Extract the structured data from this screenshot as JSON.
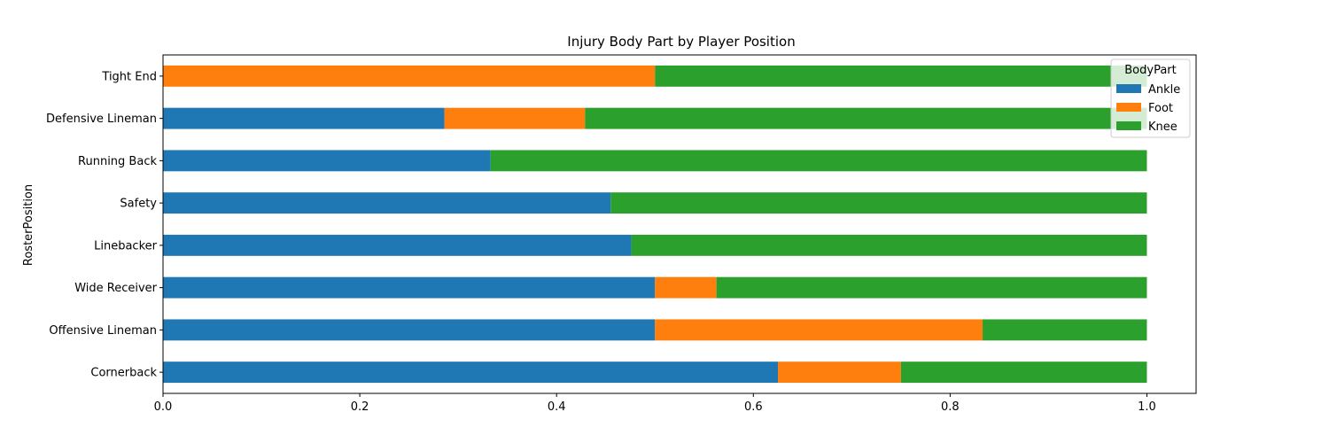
{
  "chart_data": {
    "type": "bar",
    "orientation": "horizontal",
    "stacked": true,
    "title": "Injury Body Part by Player Position",
    "xlabel": "",
    "ylabel": "RosterPosition",
    "xlim": [
      0,
      1.05
    ],
    "xticks": [
      0.0,
      0.2,
      0.4,
      0.6,
      0.8,
      1.0
    ],
    "xtick_labels": [
      "0.0",
      "0.2",
      "0.4",
      "0.6",
      "0.8",
      "1.0"
    ],
    "categories": [
      "Cornerback",
      "Offensive Lineman",
      "Wide Receiver",
      "Linebacker",
      "Safety",
      "Running Back",
      "Defensive Lineman",
      "Tight End"
    ],
    "series": [
      {
        "name": "Ankle",
        "color": "#1f77b4",
        "values": [
          0.625,
          0.5,
          0.5,
          0.476,
          0.455,
          0.333,
          0.286,
          0.0
        ]
      },
      {
        "name": "Foot",
        "color": "#ff7f0e",
        "values": [
          0.125,
          0.333,
          0.0625,
          0.0,
          0.0,
          0.0,
          0.143,
          0.5
        ]
      },
      {
        "name": "Knee",
        "color": "#2ca02c",
        "values": [
          0.25,
          0.167,
          0.4375,
          0.524,
          0.545,
          0.667,
          0.571,
          0.5
        ]
      }
    ],
    "legend": {
      "title": "BodyPart",
      "placement": "top-right"
    },
    "grid": false
  }
}
